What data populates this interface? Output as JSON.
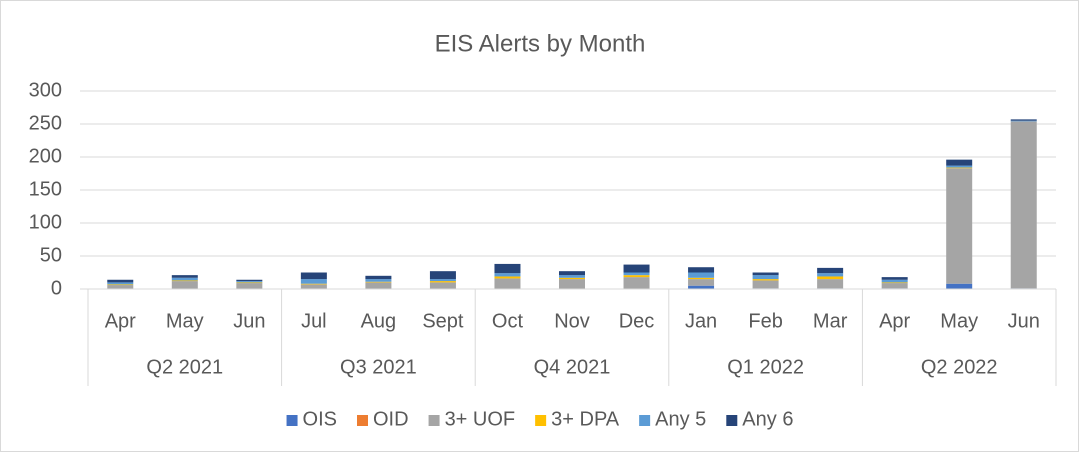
{
  "chart_data": {
    "type": "stacked_bar",
    "title": "EIS Alerts by Month",
    "categories": [
      "Apr",
      "May",
      "Jun",
      "Jul",
      "Aug",
      "Sept",
      "Oct",
      "Nov",
      "Dec",
      "Jan",
      "Feb",
      "Mar",
      "Apr",
      "May",
      "Jun"
    ],
    "groups": [
      {
        "name": "Q2 2021",
        "span": 3
      },
      {
        "name": "Q3 2021",
        "span": 3
      },
      {
        "name": "Q4 2021",
        "span": 3
      },
      {
        "name": "Q1 2022",
        "span": 3
      },
      {
        "name": "Q2 2022",
        "span": 3
      }
    ],
    "series": [
      {
        "name": "OIS",
        "color": "#4472c4",
        "values": [
          0,
          0,
          0,
          0,
          0,
          0,
          0,
          0,
          0,
          5,
          1,
          1,
          1,
          8,
          1
        ]
      },
      {
        "name": "OID",
        "color": "#ed7d31",
        "values": [
          0,
          0,
          0,
          0,
          0,
          0,
          0,
          0,
          0,
          0,
          0,
          0,
          0,
          0,
          0
        ]
      },
      {
        "name": "3+ UOF",
        "color": "#a5a5a5",
        "values": [
          6,
          12,
          9,
          7,
          10,
          10,
          16,
          15,
          18,
          10,
          12,
          14,
          8,
          175,
          253
        ]
      },
      {
        "name": "3+ DPA",
        "color": "#ffc000",
        "values": [
          1,
          1,
          1,
          1,
          1,
          2,
          3,
          2,
          3,
          2,
          2,
          4,
          1,
          1,
          0
        ]
      },
      {
        "name": "Any 5",
        "color": "#5b9bd5",
        "values": [
          3,
          4,
          2,
          7,
          4,
          3,
          5,
          4,
          4,
          8,
          6,
          5,
          4,
          3,
          1
        ]
      },
      {
        "name": "Any 6",
        "color": "#264478",
        "values": [
          4,
          4,
          2,
          10,
          5,
          12,
          14,
          6,
          12,
          8,
          4,
          8,
          4,
          9,
          2
        ]
      }
    ],
    "ylim": [
      0,
      300
    ],
    "yticks": [
      0,
      50,
      100,
      150,
      200,
      250,
      300
    ],
    "grid": true,
    "legend": "bottom"
  }
}
